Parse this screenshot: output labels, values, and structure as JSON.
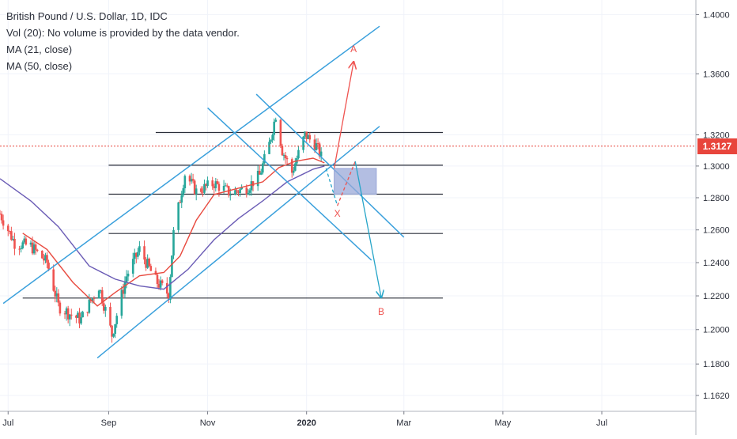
{
  "legend": {
    "title": "British Pound / U.S. Dollar, 1D, IDC",
    "volume_note": "Vol (20): No volume is provided by the data vendor.",
    "ma21": "MA (21, close)",
    "ma50": "MA (50, close)"
  },
  "colors": {
    "up": "#26a69a",
    "down": "#ef5350",
    "ma21": "#e84a3f",
    "ma50": "#6a5bb5",
    "trend": "#3aa0dc",
    "level": "#2a2e39",
    "projection_up": "#ef5350",
    "projection_down": "#26a5c8",
    "zone": "#9aa8d8",
    "price_line": "#e8453c"
  },
  "chart_data": {
    "type": "candlestick",
    "title": "British Pound / U.S. Dollar, 1D, IDC",
    "y_axis": {
      "scale": "log",
      "range": [
        1.153,
        1.41
      ],
      "ticks": [
        "1.4000",
        "1.3600",
        "1.3200",
        "1.3000",
        "1.2800",
        "1.2600",
        "1.2400",
        "1.2200",
        "1.2000",
        "1.1800",
        "1.1620"
      ]
    },
    "x_axis": {
      "range": [
        "2019-06-26",
        "2020-08-28"
      ],
      "ticks": [
        {
          "label": "Jul",
          "date": "2019-07-01"
        },
        {
          "label": "Sep",
          "date": "2019-09-01"
        },
        {
          "label": "Nov",
          "date": "2019-11-01"
        },
        {
          "label": "2020",
          "date": "2020-01-01"
        },
        {
          "label": "Mar",
          "date": "2020-03-01"
        },
        {
          "label": "May",
          "date": "2020-05-01"
        },
        {
          "label": "Jul",
          "date": "2020-07-01"
        }
      ]
    },
    "last_price": "1.3127",
    "price_path": [
      [
        "2019-06-26",
        1.27
      ],
      [
        "2019-07-05",
        1.252
      ],
      [
        "2019-07-15",
        1.25
      ],
      [
        "2019-07-25",
        1.24
      ],
      [
        "2019-08-01",
        1.214
      ],
      [
        "2019-08-10",
        1.208
      ],
      [
        "2019-08-15",
        1.206
      ],
      [
        "2019-08-26",
        1.226
      ],
      [
        "2019-09-03",
        1.197
      ],
      [
        "2019-09-12",
        1.232
      ],
      [
        "2019-09-20",
        1.248
      ],
      [
        "2019-09-30",
        1.229
      ],
      [
        "2019-10-08",
        1.221
      ],
      [
        "2019-10-11",
        1.258
      ],
      [
        "2019-10-18",
        1.295
      ],
      [
        "2019-10-25",
        1.284
      ],
      [
        "2019-11-05",
        1.289
      ],
      [
        "2019-11-15",
        1.283
      ],
      [
        "2019-11-25",
        1.286
      ],
      [
        "2019-12-03",
        1.294
      ],
      [
        "2019-12-09",
        1.314
      ],
      [
        "2019-12-13",
        1.333
      ],
      [
        "2019-12-17",
        1.31
      ],
      [
        "2019-12-23",
        1.296
      ],
      [
        "2019-12-31",
        1.32
      ],
      [
        "2020-01-07",
        1.313
      ],
      [
        "2020-01-10",
        1.306
      ]
    ],
    "series": [
      {
        "name": "MA (21, close)",
        "points": [
          [
            "2019-07-10",
            1.258
          ],
          [
            "2019-07-25",
            1.248
          ],
          [
            "2019-08-10",
            1.228
          ],
          [
            "2019-08-25",
            1.214
          ],
          [
            "2019-09-05",
            1.222
          ],
          [
            "2019-09-20",
            1.232
          ],
          [
            "2019-10-05",
            1.234
          ],
          [
            "2019-10-15",
            1.244
          ],
          [
            "2019-10-25",
            1.266
          ],
          [
            "2019-11-05",
            1.282
          ],
          [
            "2019-11-20",
            1.286
          ],
          [
            "2019-12-05",
            1.29
          ],
          [
            "2019-12-15",
            1.299
          ],
          [
            "2019-12-25",
            1.303
          ],
          [
            "2020-01-05",
            1.305
          ],
          [
            "2020-01-12",
            1.302
          ]
        ]
      },
      {
        "name": "MA (50, close)",
        "points": [
          [
            "2019-06-26",
            1.292
          ],
          [
            "2019-07-15",
            1.278
          ],
          [
            "2019-08-01",
            1.262
          ],
          [
            "2019-08-20",
            1.238
          ],
          [
            "2019-09-05",
            1.23
          ],
          [
            "2019-09-20",
            1.226
          ],
          [
            "2019-10-05",
            1.224
          ],
          [
            "2019-10-20",
            1.236
          ],
          [
            "2019-11-05",
            1.254
          ],
          [
            "2019-11-20",
            1.267
          ],
          [
            "2019-12-05",
            1.278
          ],
          [
            "2019-12-20",
            1.29
          ],
          [
            "2020-01-05",
            1.298
          ],
          [
            "2020-01-12",
            1.3
          ]
        ]
      }
    ],
    "horizontal_levels": [
      {
        "price": 1.3215,
        "from": "2019-09-30",
        "to": "2020-03-25"
      },
      {
        "price": 1.3005,
        "from": "2019-09-01",
        "to": "2020-03-25"
      },
      {
        "price": 1.2822,
        "from": "2019-09-01",
        "to": "2020-03-25"
      },
      {
        "price": 1.2578,
        "from": "2019-09-01",
        "to": "2020-03-25"
      },
      {
        "price": 1.2187,
        "from": "2019-07-10",
        "to": "2020-03-25"
      }
    ],
    "trend_lines": [
      {
        "from": [
          "2019-06-28",
          1.2155
        ],
        "to": [
          "2020-02-15",
          1.392
        ]
      },
      {
        "from": [
          "2019-08-25",
          1.1835
        ],
        "to": [
          "2020-02-15",
          1.3255
        ]
      },
      {
        "from": [
          "2019-11-01",
          1.3375
        ],
        "to": [
          "2020-02-10",
          1.2415
        ]
      },
      {
        "from": [
          "2019-12-01",
          1.3465
        ],
        "to": [
          "2020-03-01",
          1.2555
        ]
      }
    ],
    "zone": {
      "from": [
        "2020-01-18",
        1.2985
      ],
      "to": [
        "2020-02-13",
        1.2822
      ]
    },
    "projections": [
      {
        "label": "A",
        "path": [
          [
            "2020-01-18",
            1.2985
          ],
          [
            "2020-01-30",
            1.368
          ]
        ]
      },
      {
        "label": "X",
        "path": [
          [
            "2020-01-13",
            1.2985
          ],
          [
            "2020-01-20",
            1.275
          ],
          [
            "2020-01-31",
            1.303
          ]
        ]
      },
      {
        "label": "B",
        "path": [
          [
            "2020-01-31",
            1.303
          ],
          [
            "2020-02-16",
            1.219
          ]
        ]
      }
    ]
  }
}
